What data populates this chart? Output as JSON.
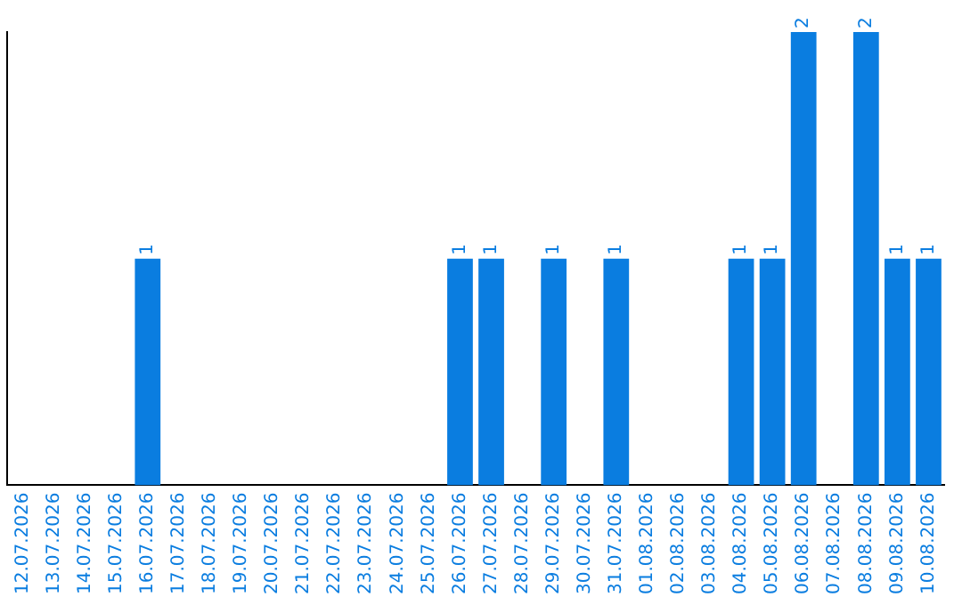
{
  "chart_data": {
    "type": "bar",
    "categories": [
      "12.07.2026",
      "13.07.2026",
      "14.07.2026",
      "15.07.2026",
      "16.07.2026",
      "17.07.2026",
      "18.07.2026",
      "19.07.2026",
      "20.07.2026",
      "21.07.2026",
      "22.07.2026",
      "23.07.2026",
      "24.07.2026",
      "25.07.2026",
      "26.07.2026",
      "27.07.2026",
      "28.07.2026",
      "29.07.2026",
      "30.07.2026",
      "31.07.2026",
      "01.08.2026",
      "02.08.2026",
      "03.08.2026",
      "04.08.2026",
      "05.08.2026",
      "06.08.2026",
      "07.08.2026",
      "08.08.2026",
      "09.08.2026",
      "10.08.2026"
    ],
    "values": [
      0,
      0,
      0,
      0,
      1,
      0,
      0,
      0,
      0,
      0,
      0,
      0,
      0,
      0,
      1,
      1,
      0,
      1,
      0,
      1,
      0,
      0,
      0,
      1,
      1,
      2,
      0,
      2,
      1,
      1
    ],
    "value_labels": [
      null,
      null,
      null,
      null,
      "1",
      null,
      null,
      null,
      null,
      null,
      null,
      null,
      null,
      null,
      "1",
      "1",
      null,
      "1",
      null,
      "1",
      null,
      null,
      null,
      "1",
      "1",
      "2",
      null,
      "2",
      "1",
      "1"
    ],
    "color": "#0a7de0",
    "ylim": [
      0,
      2
    ],
    "tick_labels": "x",
    "grid": false,
    "legend": false
  }
}
